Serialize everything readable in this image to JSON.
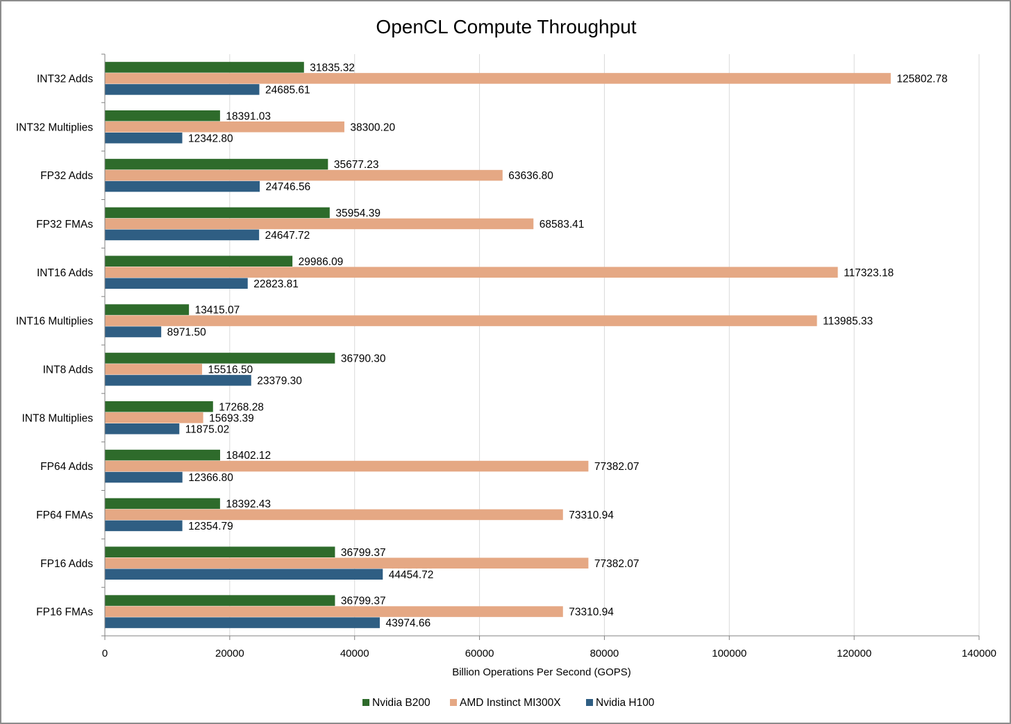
{
  "chart_data": {
    "type": "bar",
    "orientation": "horizontal",
    "title": "OpenCL Compute Throughput",
    "xlabel": "Billion Operations Per Second (GOPS)",
    "ylabel": "",
    "xlim": [
      0,
      140000
    ],
    "x_ticks": [
      0,
      20000,
      40000,
      60000,
      80000,
      100000,
      120000,
      140000
    ],
    "x_tick_labels": [
      "0",
      "20000",
      "40000",
      "60000",
      "80000",
      "100000",
      "120000",
      "140000"
    ],
    "grid": "vertical",
    "legend_position": "bottom",
    "categories": [
      "INT32 Adds",
      "INT32 Multiplies",
      "FP32 Adds",
      "FP32 FMAs",
      "INT16 Adds",
      "INT16 Multiplies",
      "INT8 Adds",
      "INT8 Multiplies",
      "FP64 Adds",
      "FP64 FMAs",
      "FP16 Adds",
      "FP16 FMAs"
    ],
    "series": [
      {
        "name": "Nvidia B200",
        "color": "#2e6b2b",
        "values": [
          31835.32,
          18391.03,
          35677.23,
          35954.39,
          29986.09,
          13415.07,
          36790.3,
          17268.28,
          18402.12,
          18392.43,
          36799.37,
          36799.37
        ],
        "labels": [
          "31835.32",
          "18391.03",
          "35677.23",
          "35954.39",
          "29986.09",
          "13415.07",
          "36790.30",
          "17268.28",
          "18402.12",
          "18392.43",
          "36799.37",
          "36799.37"
        ]
      },
      {
        "name": "AMD Instinct MI300X",
        "color": "#e5a884",
        "values": [
          125802.78,
          38300.2,
          63636.8,
          68583.41,
          117323.18,
          113985.33,
          15516.5,
          15693.39,
          77382.07,
          73310.94,
          77382.07,
          73310.94
        ],
        "labels": [
          "125802.78",
          "38300.20",
          "63636.80",
          "68583.41",
          "117323.18",
          "113985.33",
          "15516.50",
          "15693.39",
          "77382.07",
          "73310.94",
          "77382.07",
          "73310.94"
        ]
      },
      {
        "name": "Nvidia H100",
        "color": "#2f5e83",
        "values": [
          24685.61,
          12342.8,
          24746.56,
          24647.72,
          22823.81,
          8971.5,
          23379.3,
          11875.02,
          12366.8,
          12354.79,
          44454.72,
          43974.66
        ],
        "labels": [
          "24685.61",
          "12342.80",
          "24746.56",
          "24647.72",
          "22823.81",
          "8971.50",
          "23379.30",
          "11875.02",
          "12366.80",
          "12354.79",
          "44454.72",
          "43974.66"
        ]
      }
    ]
  }
}
